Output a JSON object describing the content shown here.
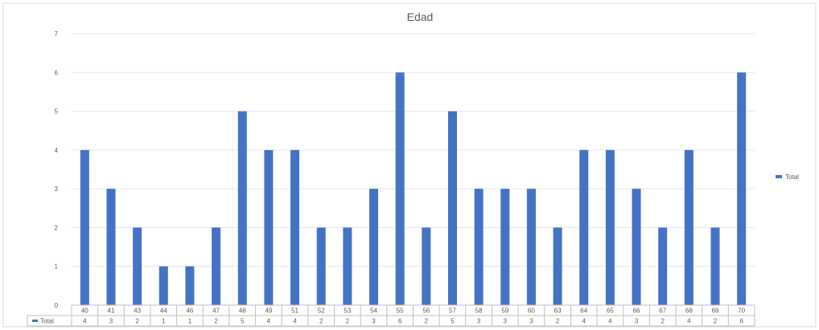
{
  "chart_data": {
    "type": "bar",
    "title": "Edad",
    "xlabel": "",
    "ylabel": "",
    "ylim": [
      0,
      7
    ],
    "yticks": [
      "0",
      "1",
      "2",
      "3",
      "4",
      "5",
      "6",
      "7"
    ],
    "grid": true,
    "legend_position": "right",
    "categories": [
      "40",
      "41",
      "43",
      "44",
      "46",
      "47",
      "48",
      "49",
      "51",
      "52",
      "53",
      "54",
      "55",
      "56",
      "57",
      "58",
      "59",
      "60",
      "63",
      "64",
      "65",
      "66",
      "67",
      "68",
      "69",
      "70"
    ],
    "series": [
      {
        "name": "Total",
        "color": "#4472C4",
        "values": [
          4,
          3,
          2,
          1,
          1,
          2,
          5,
          4,
          4,
          2,
          2,
          3,
          6,
          2,
          5,
          3,
          3,
          3,
          2,
          4,
          4,
          3,
          2,
          4,
          2,
          6
        ]
      }
    ],
    "data_table": {
      "row_label": "Total",
      "values": [
        "4",
        "3",
        "2",
        "1",
        "1",
        "2",
        "5",
        "4",
        "4",
        "2",
        "2",
        "3",
        "6",
        "2",
        "5",
        "3",
        "3",
        "3",
        "2",
        "4",
        "4",
        "3",
        "2",
        "4",
        "2",
        "6"
      ]
    }
  }
}
